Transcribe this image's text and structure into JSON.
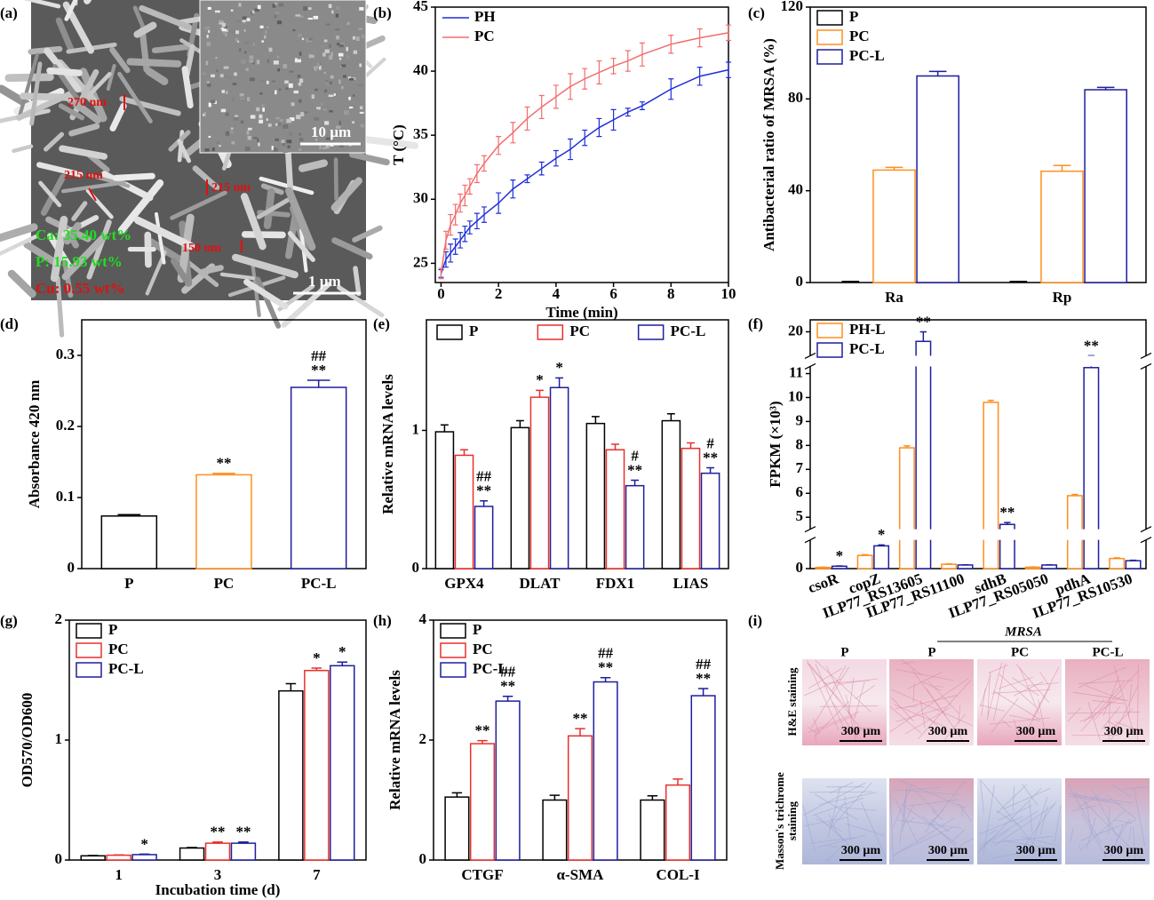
{
  "figure_a": {
    "label": "(a)",
    "annotations": [
      "270 nm",
      "215 nm",
      "215 nm",
      "150 nm"
    ],
    "composition": [
      "Ca: 35.40 wt%",
      "P: 15.93 wt%",
      "Cu: 0.55 wt%"
    ],
    "scale_bar": "1 µm",
    "inset_scale_bar": "10 µm"
  },
  "figure_i": {
    "label": "(i)",
    "group": "MRSA",
    "columns": [
      "P",
      "P",
      "PC",
      "PC-L"
    ],
    "rows": [
      [
        "H&E staining"
      ],
      [
        "Masson's trichrome",
        "staining"
      ]
    ],
    "scale_bar": "300 µm"
  },
  "chart_data": [
    {
      "type": "line",
      "label": "(b)",
      "xlabel": "Time (min)",
      "ylabel": "T (°C)",
      "xlim": [
        -0.2,
        10
      ],
      "xticks": [
        0,
        2,
        4,
        6,
        8,
        10
      ],
      "ylim": [
        23.5,
        45
      ],
      "yticks": [
        25,
        30,
        35,
        40,
        45
      ],
      "legend": "upper left",
      "x": [
        0,
        0.17,
        0.33,
        0.5,
        0.67,
        0.83,
        1,
        1.25,
        1.5,
        2,
        2.5,
        3,
        3.5,
        4,
        4.5,
        5,
        5.5,
        6,
        6.5,
        7,
        8,
        9,
        10
      ],
      "series": [
        {
          "name": "PH",
          "color": "#1f2fd6",
          "values": [
            24.2,
            25.3,
            25.8,
            26.3,
            26.8,
            27.3,
            27.8,
            28.3,
            28.8,
            29.7,
            30.8,
            31.6,
            32.4,
            33.2,
            33.9,
            34.8,
            35.6,
            36.2,
            36.8,
            37.3,
            38.6,
            39.6,
            40.1
          ],
          "errors": [
            0.3,
            0.6,
            0.7,
            0.6,
            0.6,
            0.6,
            0.5,
            0.6,
            0.6,
            0.8,
            0.7,
            0.3,
            0.5,
            0.6,
            0.8,
            0.6,
            0.7,
            0.8,
            0.3,
            0.3,
            0.8,
            0.7,
            0.6
          ]
        },
        {
          "name": "PC",
          "color": "#f26d6d",
          "values": [
            24.2,
            26.8,
            28.0,
            28.8,
            29.7,
            30.3,
            31.0,
            32.0,
            32.8,
            34.2,
            35.2,
            36.3,
            37.2,
            38.0,
            38.8,
            39.4,
            39.9,
            40.4,
            40.8,
            41.3,
            42.1,
            42.6,
            43.0
          ],
          "errors": [
            0.4,
            0.7,
            0.8,
            0.8,
            0.7,
            0.8,
            0.6,
            0.7,
            0.6,
            0.7,
            0.8,
            0.9,
            0.9,
            0.9,
            1.0,
            0.8,
            0.9,
            0.6,
            0.8,
            0.9,
            0.7,
            0.7,
            0.6
          ]
        }
      ]
    },
    {
      "type": "bar",
      "label": "(c)",
      "ylabel": "Antibacterial ratio of MRSA (%)",
      "ylim": [
        0,
        120
      ],
      "yticks": [
        0,
        40,
        80,
        120
      ],
      "legend": "upper left",
      "categories": [
        "Ra",
        "Rp"
      ],
      "series": [
        {
          "name": "P",
          "color": "#000000",
          "values": [
            0,
            0
          ],
          "errors": [
            0.5,
            0.5
          ]
        },
        {
          "name": "PC",
          "color": "#ff8f1f",
          "values": [
            49,
            48.5
          ],
          "errors": [
            1.2,
            2.5
          ]
        },
        {
          "name": "PC-L",
          "color": "#1e1e9e",
          "values": [
            90,
            84
          ],
          "errors": [
            2,
            1
          ]
        }
      ]
    },
    {
      "type": "bar",
      "label": "(d)",
      "ylabel": "Absorbance 420 nm",
      "ylim": [
        0,
        0.35
      ],
      "yticks": [
        0,
        0.1,
        0.2,
        0.3
      ],
      "categories": [
        "P",
        "PC",
        "PC-L"
      ],
      "values": [
        0.074,
        0.132,
        0.255
      ],
      "errors": [
        0.002,
        0.002,
        0.01
      ],
      "colors": [
        "#000000",
        "#ff8f1f",
        "#1e1e9e"
      ],
      "annotations": [
        {
          "x": "PC",
          "text": "**"
        },
        {
          "x": "PC-L",
          "text": "**"
        },
        {
          "x": "PC-L",
          "text": "##"
        }
      ]
    },
    {
      "type": "bar",
      "label": "(e)",
      "ylabel": "Relative mRNA levels",
      "ylim": [
        0,
        1.8
      ],
      "yticks": [
        0,
        1
      ],
      "legend": "top",
      "categories": [
        "GPX4",
        "DLAT",
        "FDX1",
        "LIAS"
      ],
      "series": [
        {
          "name": "P",
          "color": "#000000",
          "values": [
            0.99,
            1.02,
            1.05,
            1.07
          ],
          "errors": [
            0.05,
            0.05,
            0.05,
            0.05
          ]
        },
        {
          "name": "PC",
          "color": "#e8312c",
          "values": [
            0.82,
            1.24,
            0.86,
            0.87
          ],
          "errors": [
            0.04,
            0.05,
            0.04,
            0.04
          ]
        },
        {
          "name": "PC-L",
          "color": "#1e1e9e",
          "values": [
            0.45,
            1.31,
            0.6,
            0.69
          ],
          "errors": [
            0.04,
            0.07,
            0.04,
            0.04
          ]
        }
      ],
      "annotations": [
        {
          "x": "GPX4",
          "series": "PC-L",
          "text": "**"
        },
        {
          "x": "GPX4",
          "series": "PC-L",
          "text": "##"
        },
        {
          "x": "DLAT",
          "series": "PC",
          "text": "*"
        },
        {
          "x": "DLAT",
          "series": "PC-L",
          "text": "*"
        },
        {
          "x": "FDX1",
          "series": "PC-L",
          "text": "**"
        },
        {
          "x": "FDX1",
          "series": "PC-L",
          "text": "#"
        },
        {
          "x": "LIAS",
          "series": "PC-L",
          "text": "**"
        },
        {
          "x": "LIAS",
          "series": "PC-L",
          "text": "#"
        }
      ]
    },
    {
      "type": "bar",
      "label": "(f)",
      "ylabel": "FPKM (×10³)",
      "ysegments": [
        [
          0,
          1.2
        ],
        [
          4.5,
          11.3
        ],
        [
          19,
          20.5
        ]
      ],
      "yticks": [
        0,
        5,
        6,
        7,
        8,
        9,
        10,
        11,
        20
      ],
      "legend": "upper left",
      "categories": [
        "csoR",
        "copZ",
        "ILP77_RS13605",
        "ILP77_RS11100",
        "sdhB",
        "ILP77_RS05050",
        "pdhA",
        "ILP77_RS10530"
      ],
      "series": [
        {
          "name": "PH-L",
          "color": "#ff8f1f",
          "values": [
            0.05,
            0.55,
            7.9,
            0.18,
            9.8,
            0.06,
            5.9,
            0.42
          ],
          "errors": [
            0.01,
            0.03,
            0.08,
            0.02,
            0.08,
            0.01,
            0.05,
            0.03
          ]
        },
        {
          "name": "PC-L",
          "color": "#1e1e9e",
          "values": [
            0.1,
            0.95,
            19.6,
            0.15,
            4.7,
            0.15,
            11.25,
            0.33
          ],
          "errors": [
            0.01,
            0.04,
            0.4,
            0.01,
            0.08,
            0.01,
            0.07,
            0.02
          ]
        }
      ],
      "annotations": [
        {
          "x": "csoR",
          "series": "PC-L",
          "text": "*"
        },
        {
          "x": "copZ",
          "series": "PC-L",
          "text": "*"
        },
        {
          "x": "ILP77_RS13605",
          "series": "PC-L",
          "text": "**"
        },
        {
          "x": "sdhB",
          "series": "PC-L",
          "text": "**"
        },
        {
          "x": "pdhA",
          "series": "PC-L",
          "text": "**"
        }
      ]
    },
    {
      "type": "bar",
      "label": "(g)",
      "xlabel": "Incubation time (d)",
      "ylabel": "OD570/OD600",
      "ylim": [
        0,
        2
      ],
      "yticks": [
        0,
        1,
        2
      ],
      "legend": "upper left",
      "categories": [
        "1",
        "3",
        "7"
      ],
      "series": [
        {
          "name": "P",
          "color": "#000000",
          "values": [
            0.035,
            0.1,
            1.41
          ],
          "errors": [
            0.003,
            0.005,
            0.06
          ]
        },
        {
          "name": "PC",
          "color": "#e8312c",
          "values": [
            0.04,
            0.14,
            1.58
          ],
          "errors": [
            0.003,
            0.01,
            0.02
          ]
        },
        {
          "name": "PC-L",
          "color": "#1e1e9e",
          "values": [
            0.045,
            0.14,
            1.62
          ],
          "errors": [
            0.004,
            0.01,
            0.03
          ]
        }
      ],
      "annotations": [
        {
          "x": "1",
          "series": "PC-L",
          "text": "*"
        },
        {
          "x": "3",
          "series": "PC",
          "text": "**"
        },
        {
          "x": "3",
          "series": "PC-L",
          "text": "**"
        },
        {
          "x": "7",
          "series": "PC",
          "text": "*"
        },
        {
          "x": "7",
          "series": "PC-L",
          "text": "*"
        }
      ]
    },
    {
      "type": "bar",
      "label": "(h)",
      "ylabel": "Relative mRNA levels",
      "ylim": [
        0,
        4
      ],
      "yticks": [
        0,
        2,
        4
      ],
      "legend": "upper left",
      "categories": [
        "CTGF",
        "α-SMA",
        "COL-I"
      ],
      "series": [
        {
          "name": "P",
          "color": "#000000",
          "values": [
            1.05,
            1.0,
            1.0
          ],
          "errors": [
            0.07,
            0.08,
            0.07
          ]
        },
        {
          "name": "PC",
          "color": "#e8312c",
          "values": [
            1.94,
            2.07,
            1.25
          ],
          "errors": [
            0.05,
            0.12,
            0.1
          ]
        },
        {
          "name": "PC-L",
          "color": "#1e1e9e",
          "values": [
            2.65,
            2.97,
            2.74
          ],
          "errors": [
            0.08,
            0.07,
            0.12
          ]
        }
      ],
      "annotations": [
        {
          "x": "CTGF",
          "series": "PC",
          "text": "**"
        },
        {
          "x": "CTGF",
          "series": "PC-L",
          "text": "**"
        },
        {
          "x": "CTGF",
          "series": "PC-L",
          "text": "##"
        },
        {
          "x": "α-SMA",
          "series": "PC",
          "text": "**"
        },
        {
          "x": "α-SMA",
          "series": "PC-L",
          "text": "**"
        },
        {
          "x": "α-SMA",
          "series": "PC-L",
          "text": "##"
        },
        {
          "x": "COL-I",
          "series": "PC-L",
          "text": "**"
        },
        {
          "x": "COL-I",
          "series": "PC-L",
          "text": "##"
        }
      ]
    }
  ]
}
